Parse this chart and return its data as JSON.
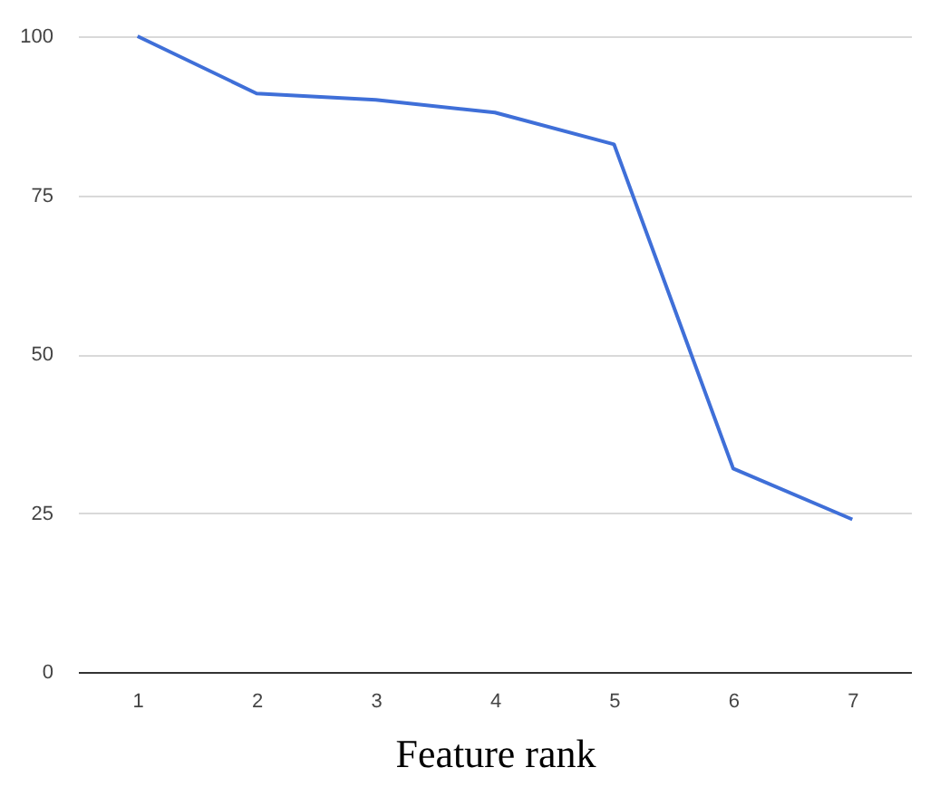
{
  "chart_data": {
    "type": "line",
    "xlabel": "Feature rank",
    "categories": [
      "1",
      "2",
      "3",
      "4",
      "5",
      "6",
      "7"
    ],
    "series": [
      {
        "color": "#3f6fd8",
        "values": [
          100,
          91,
          90,
          88,
          83,
          32,
          24
        ]
      }
    ],
    "ylim": [
      0,
      100
    ],
    "yticks": [
      0,
      25,
      50,
      75,
      100
    ],
    "grid": "y",
    "legend": false
  }
}
